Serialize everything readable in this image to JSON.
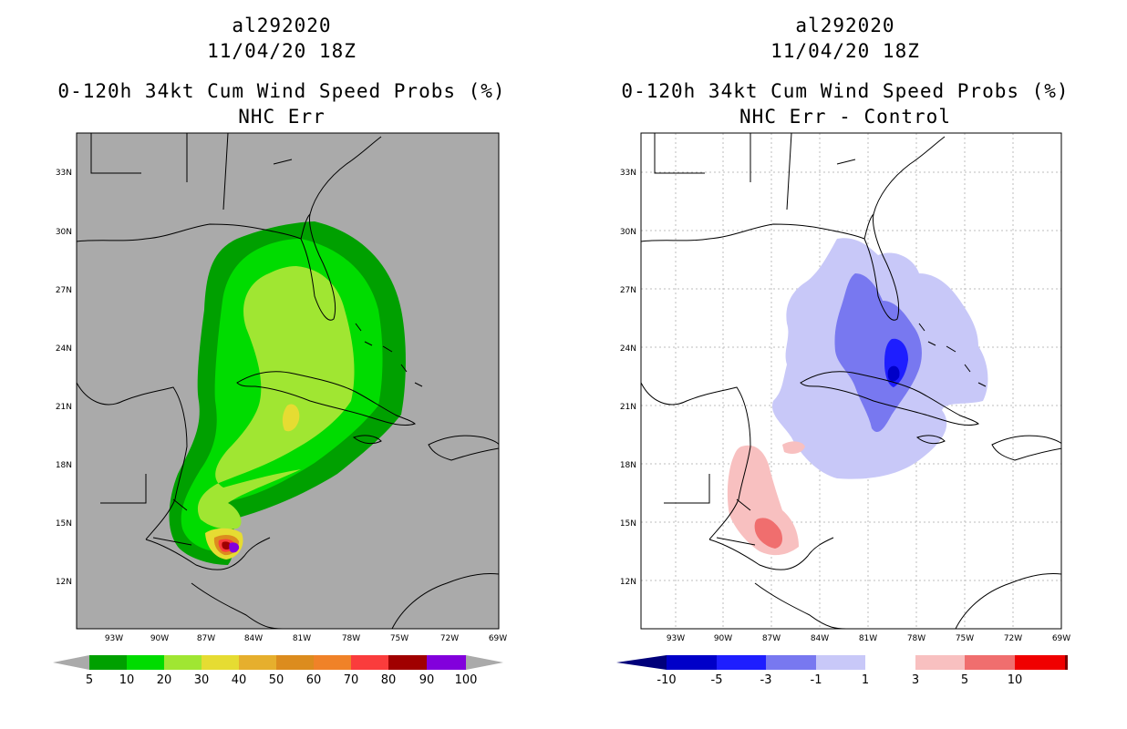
{
  "panels": {
    "left": {
      "storm_id": "al292020",
      "datetime": "11/04/20 18Z",
      "product": "0-120h 34kt Cum Wind Speed Probs (%)",
      "subtitle": "NHC Err"
    },
    "right": {
      "storm_id": "al292020",
      "datetime": "11/04/20 18Z",
      "product": "0-120h 34kt Cum Wind Speed Probs (%)",
      "subtitle": "NHC Err - Control"
    }
  },
  "axes": {
    "lat_labels": [
      "33N",
      "30N",
      "27N",
      "24N",
      "21N",
      "18N",
      "15N",
      "12N"
    ],
    "lon_labels": [
      "93W",
      "90W",
      "87W",
      "84W",
      "81W",
      "78W",
      "75W",
      "72W",
      "69W"
    ]
  },
  "colorbars": {
    "left": {
      "labels": [
        "5",
        "10",
        "20",
        "30",
        "40",
        "50",
        "60",
        "70",
        "80",
        "90",
        "100"
      ],
      "colors": [
        "#00a000",
        "#00dc00",
        "#a0e632",
        "#e6dc32",
        "#e6af2d",
        "#dc8c1e",
        "#f08228",
        "#fa3c3c",
        "#a00000",
        "#8200dc"
      ]
    },
    "right": {
      "labels": [
        "-10",
        "-5",
        "-3",
        "-1",
        "1",
        "3",
        "5",
        "10"
      ],
      "colors": [
        "#0000c8",
        "#1e1eff",
        "#7878f0",
        "#c8c8f8",
        "#ffffff",
        "#f8c0c0",
        "#f06e6e",
        "#f00000"
      ],
      "end_low": "#00007a",
      "end_high": "#7a0000"
    }
  },
  "colors": {
    "land_ocean_bg_left": "#aaaaaa",
    "map_bg_right": "#ffffff",
    "grid": "#b8b8b8"
  }
}
